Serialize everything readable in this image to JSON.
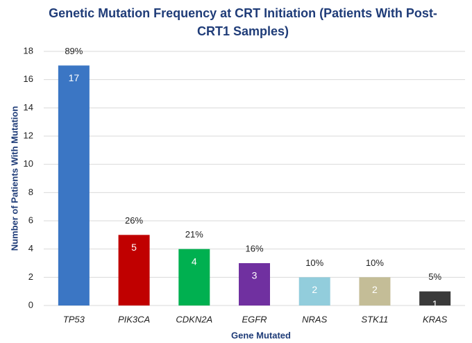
{
  "chart_data": {
    "type": "bar",
    "title": "Genetic Mutation Frequency at CRT Initiation (Patients With Post-CRT1 Samples)",
    "x_label": "Gene Mutated",
    "y_label": "Number of Patients With Mutation",
    "categories": [
      "TP53",
      "PIK3CA",
      "CDKN2A",
      "EGFR",
      "NRAS",
      "STK11",
      "KRAS"
    ],
    "values": [
      17,
      5,
      4,
      3,
      2,
      2,
      1
    ],
    "annotations": [
      "89%",
      "26%",
      "21%",
      "16%",
      "10%",
      "10%",
      "5%"
    ],
    "colors": [
      "#3b76c4",
      "#c00000",
      "#00b050",
      "#7030a0",
      "#92cddc",
      "#c4bd97",
      "#3a3a3a"
    ],
    "ylim": [
      0,
      18
    ],
    "yticks": [
      0,
      2,
      4,
      6,
      8,
      10,
      12,
      14,
      16,
      18
    ],
    "grid": true
  }
}
